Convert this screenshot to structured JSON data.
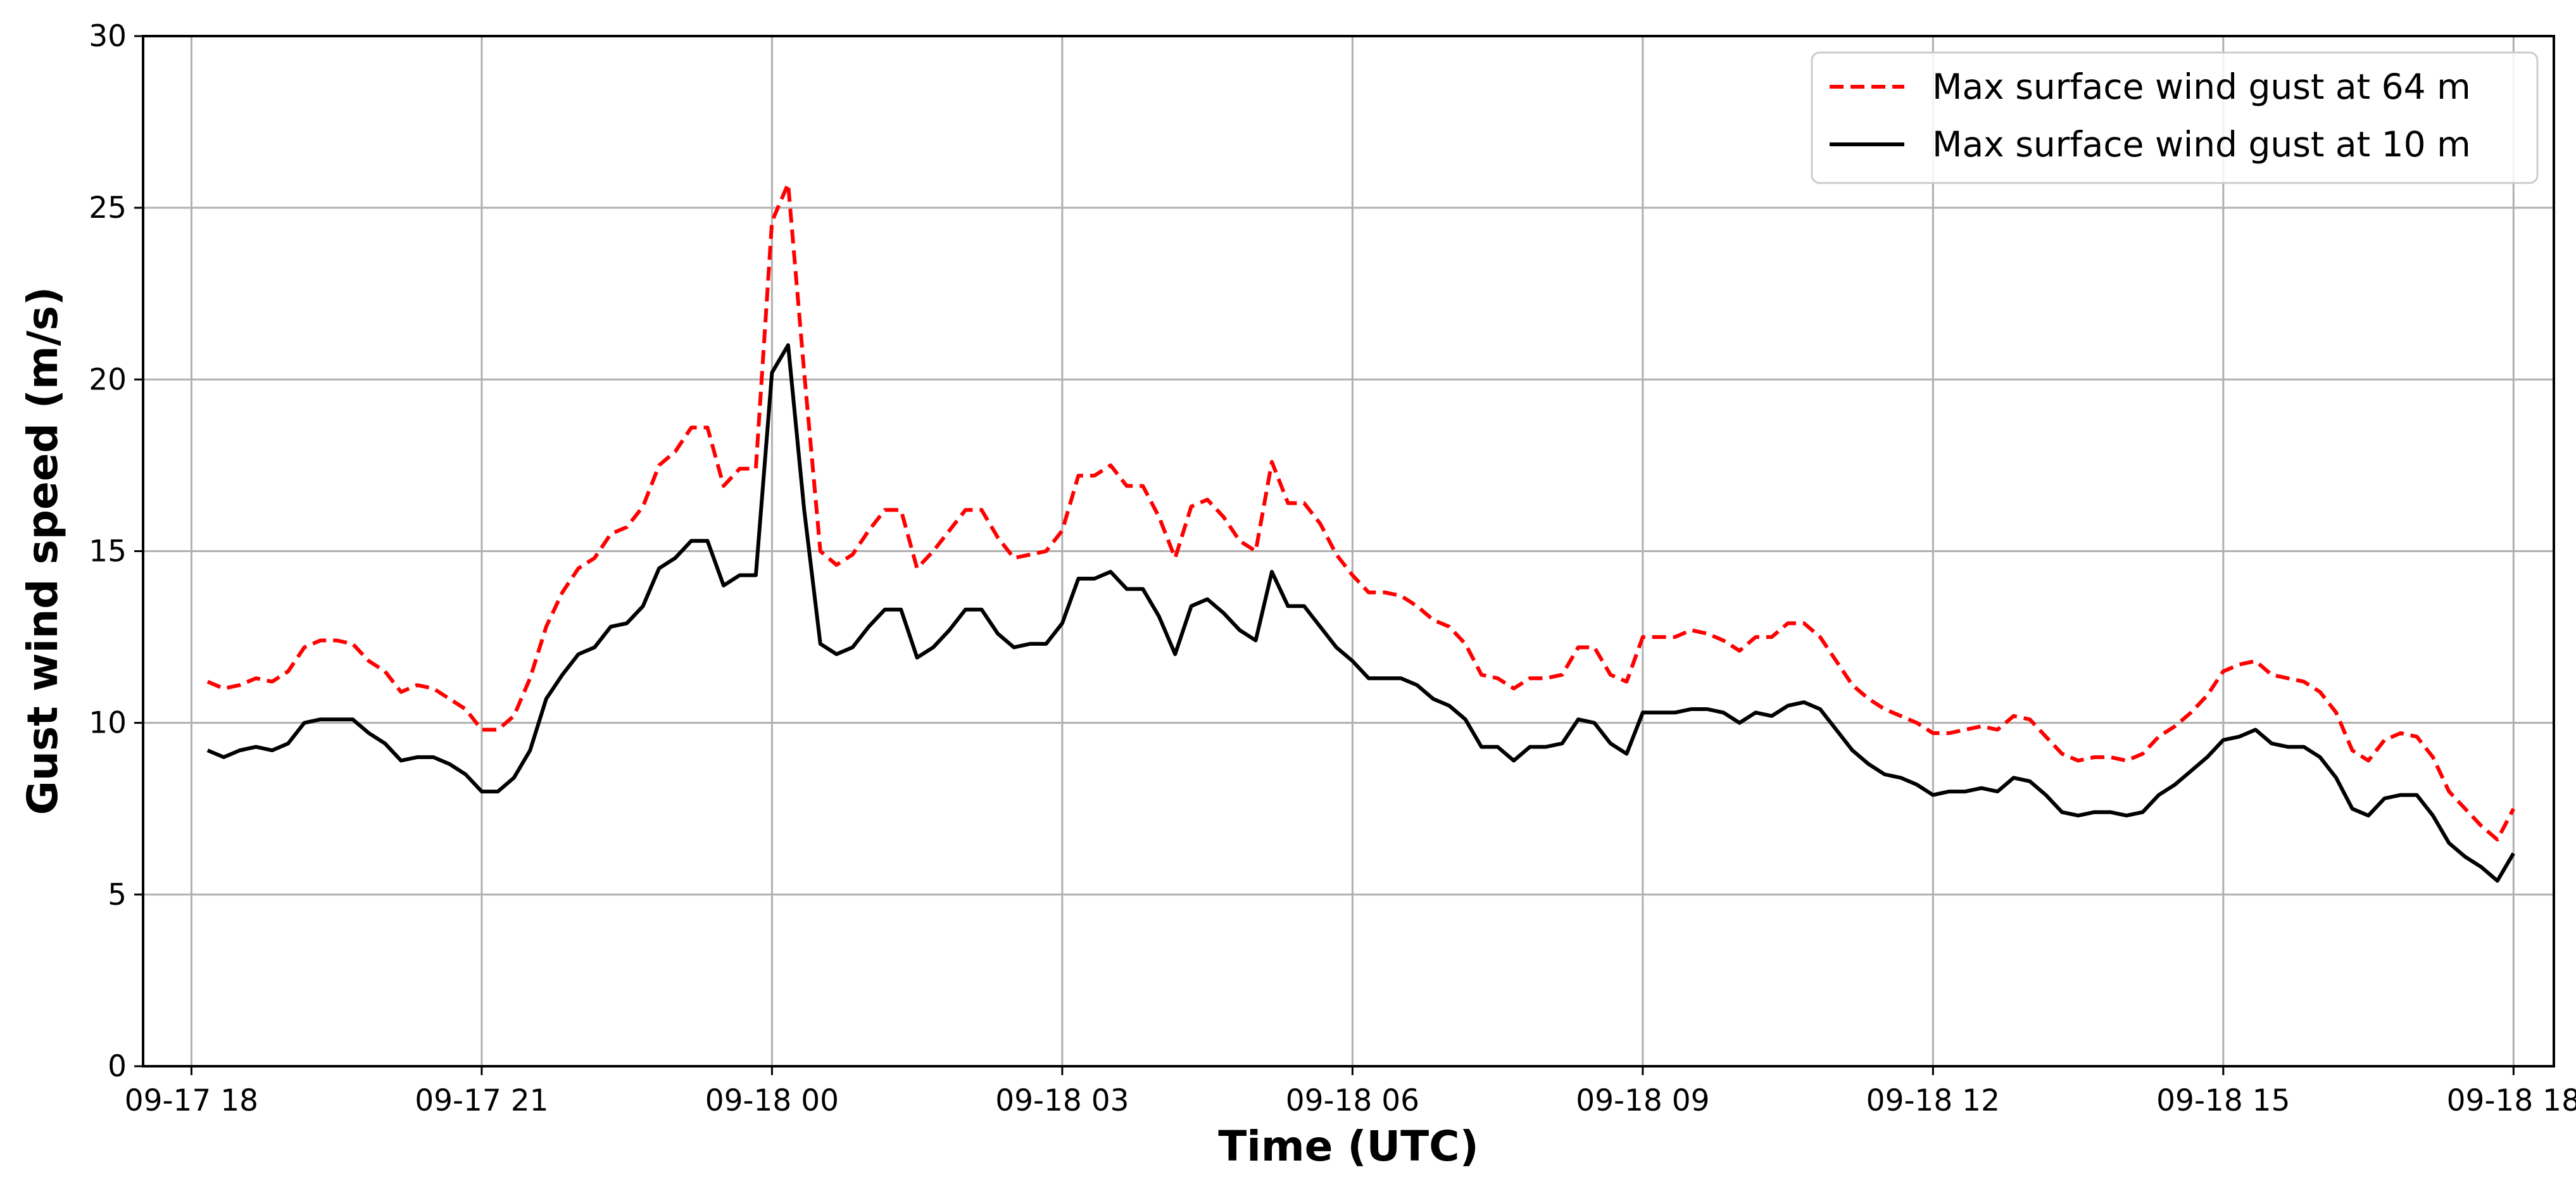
{
  "chart_data": {
    "type": "line",
    "title": "",
    "xlabel": "Time (UTC)",
    "ylabel": "Gust wind speed (m/s)",
    "ylim": [
      0,
      30
    ],
    "yticks": [
      0,
      5,
      10,
      15,
      20,
      25,
      30
    ],
    "xlim": [
      "2023-09-17T17:30",
      "2023-09-18T18:25"
    ],
    "xticks": [
      {
        "t": "2023-09-17T18:00",
        "label": "09-17 18"
      },
      {
        "t": "2023-09-17T21:00",
        "label": "09-17 21"
      },
      {
        "t": "2023-09-18T00:00",
        "label": "09-18 00"
      },
      {
        "t": "2023-09-18T03:00",
        "label": "09-18 03"
      },
      {
        "t": "2023-09-18T06:00",
        "label": "09-18 06"
      },
      {
        "t": "2023-09-18T09:00",
        "label": "09-18 09"
      },
      {
        "t": "2023-09-18T12:00",
        "label": "09-18 12"
      },
      {
        "t": "2023-09-18T15:00",
        "label": "09-18 15"
      },
      {
        "t": "2023-09-18T18:00",
        "label": "09-18 18"
      }
    ],
    "grid": true,
    "legend_position": "top-right",
    "x_start": "2023-09-17T18:10",
    "x_step_minutes": 10,
    "series": [
      {
        "name": "Max surface wind gust at 64 m",
        "color": "#ff0000",
        "style": "dashed",
        "values": [
          11.2,
          11.0,
          11.1,
          11.3,
          11.2,
          11.5,
          12.2,
          12.4,
          12.4,
          12.3,
          11.8,
          11.5,
          10.9,
          11.1,
          11.0,
          10.7,
          10.4,
          9.8,
          9.8,
          10.2,
          11.3,
          12.8,
          13.8,
          14.5,
          14.8,
          15.5,
          15.7,
          16.3,
          17.5,
          17.9,
          18.6,
          18.6,
          16.9,
          17.4,
          17.4,
          24.6,
          25.7,
          20.2,
          15.0,
          14.6,
          14.9,
          15.6,
          16.2,
          16.2,
          14.5,
          15.0,
          15.6,
          16.2,
          16.2,
          15.4,
          14.8,
          14.9,
          15.0,
          15.6,
          17.2,
          17.2,
          17.5,
          16.9,
          16.9,
          16.0,
          14.8,
          16.3,
          16.5,
          16.0,
          15.3,
          15.0,
          17.6,
          16.4,
          16.4,
          15.8,
          14.9,
          14.3,
          13.8,
          13.8,
          13.7,
          13.4,
          13.0,
          12.8,
          12.3,
          11.4,
          11.3,
          11.0,
          11.3,
          11.3,
          11.4,
          12.2,
          12.2,
          11.4,
          11.2,
          12.5,
          12.5,
          12.5,
          12.7,
          12.6,
          12.4,
          12.1,
          12.5,
          12.5,
          12.9,
          12.9,
          12.5,
          11.8,
          11.1,
          10.7,
          10.4,
          10.2,
          10.0,
          9.7,
          9.7,
          9.8,
          9.9,
          9.8,
          10.2,
          10.1,
          9.6,
          9.1,
          8.9,
          9.0,
          9.0,
          8.9,
          9.1,
          9.6,
          9.9,
          10.3,
          10.8,
          11.5,
          11.7,
          11.8,
          11.4,
          11.3,
          11.2,
          10.9,
          10.3,
          9.2,
          8.9,
          9.5,
          9.7,
          9.6,
          9.0,
          8.0,
          7.5,
          7.0,
          6.6,
          7.5
        ]
      },
      {
        "name": "Max surface wind gust at 10 m",
        "color": "#000000",
        "style": "solid",
        "values": [
          9.2,
          9.0,
          9.2,
          9.3,
          9.2,
          9.4,
          10.0,
          10.1,
          10.1,
          10.1,
          9.7,
          9.4,
          8.9,
          9.0,
          9.0,
          8.8,
          8.5,
          8.0,
          8.0,
          8.4,
          9.2,
          10.7,
          11.4,
          12.0,
          12.2,
          12.8,
          12.9,
          13.4,
          14.5,
          14.8,
          15.3,
          15.3,
          14.0,
          14.3,
          14.3,
          20.2,
          21.0,
          16.2,
          12.3,
          12.0,
          12.2,
          12.8,
          13.3,
          13.3,
          11.9,
          12.2,
          12.7,
          13.3,
          13.3,
          12.6,
          12.2,
          12.3,
          12.3,
          12.9,
          14.2,
          14.2,
          14.4,
          13.9,
          13.9,
          13.1,
          12.0,
          13.4,
          13.6,
          13.2,
          12.7,
          12.4,
          14.4,
          13.4,
          13.4,
          12.8,
          12.2,
          11.8,
          11.3,
          11.3,
          11.3,
          11.1,
          10.7,
          10.5,
          10.1,
          9.3,
          9.3,
          8.9,
          9.3,
          9.3,
          9.4,
          10.1,
          10.0,
          9.4,
          9.1,
          10.3,
          10.3,
          10.3,
          10.4,
          10.4,
          10.3,
          10.0,
          10.3,
          10.2,
          10.5,
          10.6,
          10.4,
          9.8,
          9.2,
          8.8,
          8.5,
          8.4,
          8.2,
          7.9,
          8.0,
          8.0,
          8.1,
          8.0,
          8.4,
          8.3,
          7.9,
          7.4,
          7.3,
          7.4,
          7.4,
          7.3,
          7.4,
          7.9,
          8.2,
          8.6,
          9.0,
          9.5,
          9.6,
          9.8,
          9.4,
          9.3,
          9.3,
          9.0,
          8.4,
          7.5,
          7.3,
          7.8,
          7.9,
          7.9,
          7.3,
          6.5,
          6.1,
          5.8,
          5.4,
          6.2
        ]
      }
    ]
  }
}
